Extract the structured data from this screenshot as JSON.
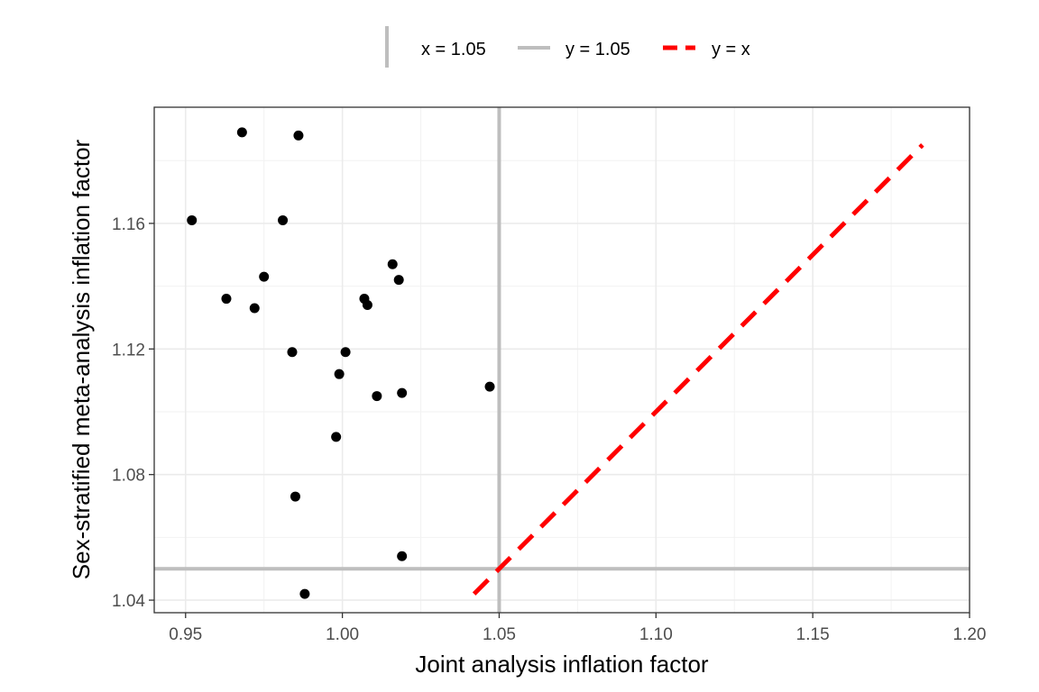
{
  "chart_data": {
    "type": "scatter",
    "xlabel": "Joint analysis inflation factor",
    "ylabel": "Sex-stratified meta-analysis inflation factor",
    "xlim": [
      0.94,
      1.2
    ],
    "ylim": [
      1.036,
      1.197
    ],
    "x_ticks": [
      0.95,
      1.0,
      1.05,
      1.1,
      1.15,
      1.2
    ],
    "x_tick_labels": [
      "0.95",
      "1.00",
      "1.05",
      "1.10",
      "1.15",
      "1.20"
    ],
    "y_ticks": [
      1.04,
      1.08,
      1.12,
      1.16
    ],
    "y_tick_labels": [
      "1.04",
      "1.08",
      "1.12",
      "1.16"
    ],
    "grid": true,
    "legend_position": "top",
    "legend": [
      {
        "label": "x = 1.05",
        "style": "vertical-line",
        "color": "#bebebe"
      },
      {
        "label": "y = 1.05",
        "style": "horizontal-line",
        "color": "#bebebe"
      },
      {
        "label": "y = x",
        "style": "dashed-line",
        "color": "#ff0000"
      }
    ],
    "reference_lines": {
      "vertical": {
        "x": 1.05,
        "color": "#bebebe"
      },
      "horizontal": {
        "y": 1.05,
        "color": "#bebebe"
      },
      "identity": {
        "x_start": 1.042,
        "x_end": 1.185,
        "color": "#ff0000"
      }
    },
    "points": [
      {
        "x": 0.952,
        "y": 1.161
      },
      {
        "x": 0.968,
        "y": 1.189
      },
      {
        "x": 0.986,
        "y": 1.188
      },
      {
        "x": 0.981,
        "y": 1.161
      },
      {
        "x": 0.975,
        "y": 1.143
      },
      {
        "x": 0.963,
        "y": 1.136
      },
      {
        "x": 0.972,
        "y": 1.133
      },
      {
        "x": 1.016,
        "y": 1.147
      },
      {
        "x": 1.018,
        "y": 1.142
      },
      {
        "x": 1.007,
        "y": 1.136
      },
      {
        "x": 1.008,
        "y": 1.134
      },
      {
        "x": 0.984,
        "y": 1.119
      },
      {
        "x": 1.001,
        "y": 1.119
      },
      {
        "x": 0.999,
        "y": 1.112
      },
      {
        "x": 1.011,
        "y": 1.105
      },
      {
        "x": 1.019,
        "y": 1.106
      },
      {
        "x": 1.047,
        "y": 1.108
      },
      {
        "x": 0.998,
        "y": 1.092
      },
      {
        "x": 0.985,
        "y": 1.073
      },
      {
        "x": 1.019,
        "y": 1.054
      },
      {
        "x": 0.988,
        "y": 1.042
      }
    ],
    "point_color": "#000000"
  }
}
